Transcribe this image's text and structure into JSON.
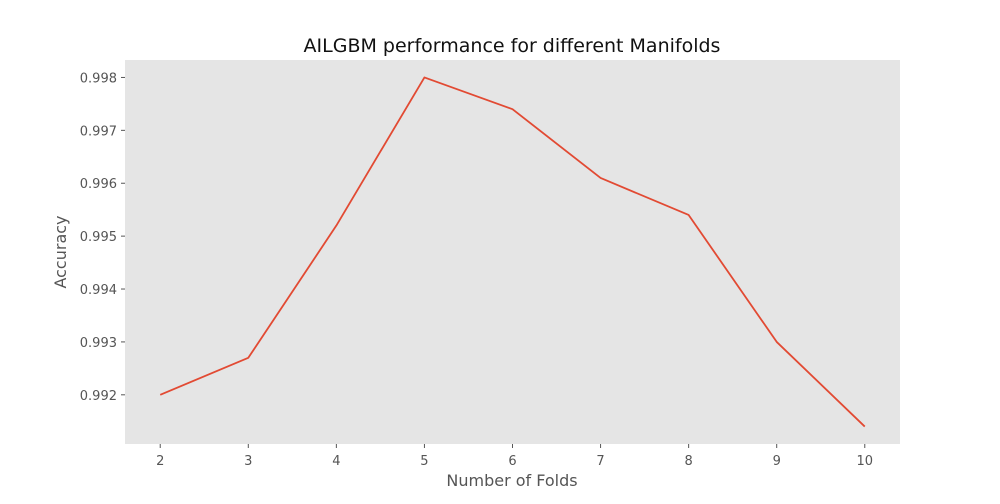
{
  "chart_data": {
    "type": "line",
    "title": "AILGBM performance for different Manifolds",
    "xlabel": "Number of Folds",
    "ylabel": "Accuracy",
    "x": [
      2,
      3,
      4,
      5,
      6,
      7,
      8,
      9,
      10
    ],
    "series": [
      {
        "values": [
          0.992,
          0.9927,
          0.9952,
          0.998,
          0.9974,
          0.9961,
          0.9954,
          0.993,
          0.9914
        ]
      }
    ],
    "xlim": [
      1.6,
      10.4
    ],
    "ylim": [
      0.99107,
      0.99833
    ],
    "xticks": [
      2,
      3,
      4,
      5,
      6,
      7,
      8,
      9,
      10
    ],
    "yticks": [
      0.992,
      0.993,
      0.994,
      0.995,
      0.996,
      0.997,
      0.998
    ],
    "ytick_labels": [
      "0.992",
      "0.993",
      "0.994",
      "0.995",
      "0.996",
      "0.997",
      "0.998"
    ],
    "grid": false,
    "colors": {
      "line": "#E24A33",
      "plot_background": "#E5E5E5",
      "tick_color": "#555555"
    }
  }
}
